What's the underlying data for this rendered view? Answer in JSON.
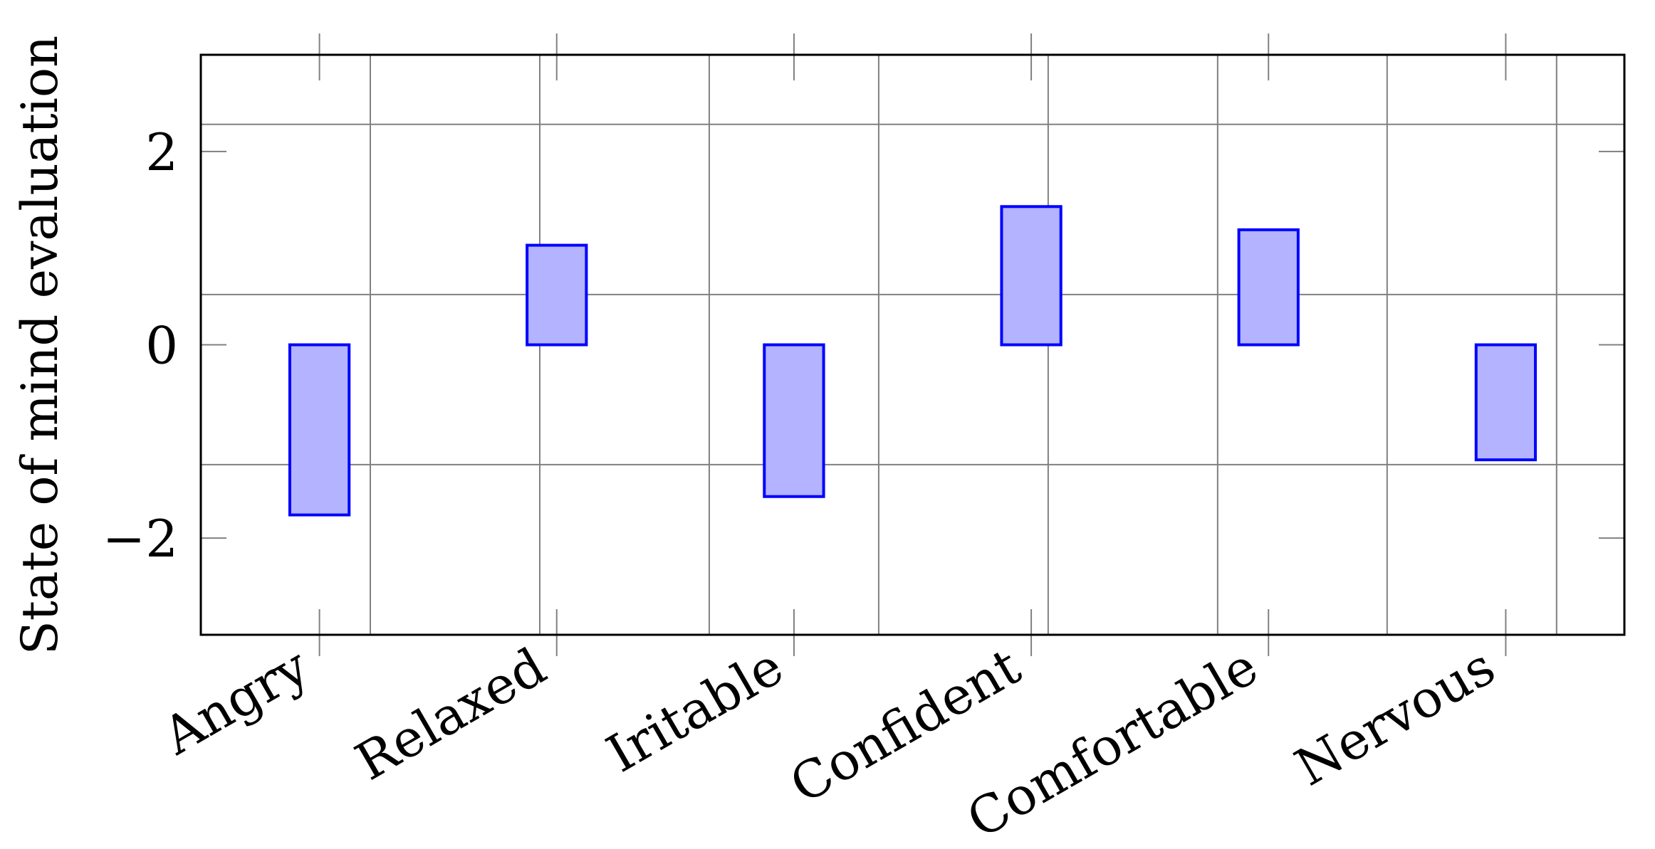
{
  "chart_data": {
    "type": "bar",
    "title": "",
    "xlabel": "",
    "ylabel": "State of mind evaluation",
    "categories": [
      "Angry",
      "Relaxed",
      "Iritable",
      "Confident",
      "Comfortable",
      "Nervous"
    ],
    "values": [
      -1.76,
      1.03,
      -1.57,
      1.43,
      1.19,
      -1.19
    ],
    "ylim": [
      -3,
      3
    ],
    "yticks": [
      -2,
      0,
      2
    ],
    "ytick_labels": [
      "−2",
      "0",
      "2"
    ],
    "grid": true,
    "colors": {
      "bar_fill": "#b3b3ff",
      "bar_stroke": "#0000ff",
      "grid": "#808080",
      "axis": "#000000"
    }
  }
}
